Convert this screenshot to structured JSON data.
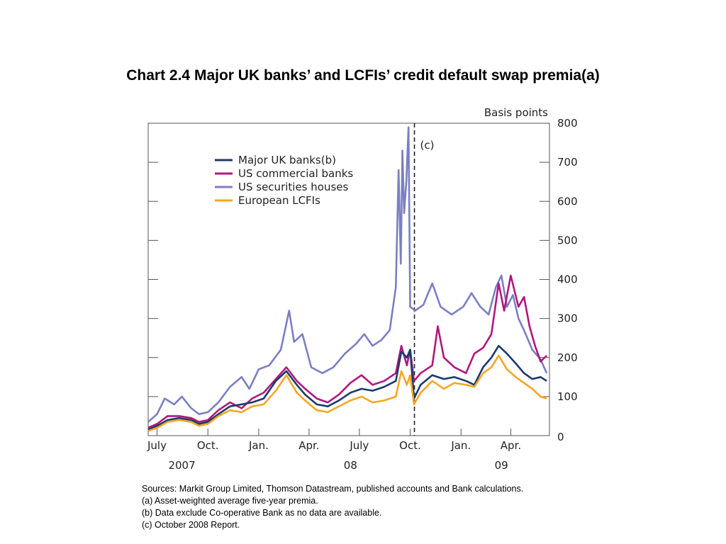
{
  "title": "Chart 2.4  Major UK banks’ and LCFIs’ credit default swap premia(a)",
  "notes": [
    "Sources:  Markit Group Limited, Thomson Datastream, published accounts and Bank calculations.",
    "(a) Asset-weighted average five-year premia.",
    "(b) Data exclude Co-operative Bank as no data are available.",
    "(c) October 2008 Report."
  ],
  "chart_data": {
    "type": "line",
    "title": "",
    "ylabel": "Basis points",
    "ylim": [
      0,
      800
    ],
    "yticks": [
      "800",
      "700",
      "600",
      "500",
      "400",
      "300",
      "200",
      "100",
      "0"
    ],
    "xlim": [
      "2007-06-15",
      "2009-06-10"
    ],
    "x_tick_labels": [
      {
        "label": "July",
        "date": "2007-07-01"
      },
      {
        "label": "Oct.",
        "date": "2007-10-01"
      },
      {
        "label": "Jan.",
        "date": "2008-01-01"
      },
      {
        "label": "Apr.",
        "date": "2008-04-01"
      },
      {
        "label": "July",
        "date": "2008-07-01"
      },
      {
        "label": "Oct.",
        "date": "2008-10-01"
      },
      {
        "label": "Jan.",
        "date": "2009-01-01"
      },
      {
        "label": "Apr.",
        "date": "2009-04-01"
      }
    ],
    "x_year_labels": [
      {
        "label": "2007",
        "date": "2007-08-15"
      },
      {
        "label": "08",
        "date": "2008-06-15"
      },
      {
        "label": "09",
        "date": "2009-03-15"
      }
    ],
    "annotation": {
      "label": "(c)",
      "date": "2008-10-01",
      "style": "dashed vertical line"
    },
    "legend_position": "top-left",
    "grid": false,
    "series": [
      {
        "name": "Major UK banks(b)",
        "color": "#1b3a6b",
        "points": [
          [
            "2007-06-15",
            15
          ],
          [
            "2007-07-01",
            25
          ],
          [
            "2007-07-20",
            40
          ],
          [
            "2007-08-10",
            45
          ],
          [
            "2007-09-01",
            40
          ],
          [
            "2007-09-15",
            30
          ],
          [
            "2007-10-01",
            35
          ],
          [
            "2007-10-20",
            55
          ],
          [
            "2007-11-10",
            75
          ],
          [
            "2007-12-01",
            80
          ],
          [
            "2007-12-20",
            85
          ],
          [
            "2008-01-10",
            95
          ],
          [
            "2008-02-01",
            140
          ],
          [
            "2008-02-20",
            165
          ],
          [
            "2008-03-10",
            130
          ],
          [
            "2008-03-25",
            105
          ],
          [
            "2008-04-15",
            80
          ],
          [
            "2008-05-05",
            75
          ],
          [
            "2008-05-25",
            90
          ],
          [
            "2008-06-15",
            110
          ],
          [
            "2008-07-05",
            120
          ],
          [
            "2008-07-25",
            115
          ],
          [
            "2008-08-15",
            125
          ],
          [
            "2008-09-05",
            140
          ],
          [
            "2008-09-15",
            215
          ],
          [
            "2008-09-25",
            200
          ],
          [
            "2008-10-01",
            220
          ],
          [
            "2008-10-08",
            95
          ],
          [
            "2008-10-20",
            130
          ],
          [
            "2008-11-10",
            155
          ],
          [
            "2008-12-01",
            145
          ],
          [
            "2008-12-20",
            150
          ],
          [
            "2009-01-10",
            140
          ],
          [
            "2009-01-25",
            130
          ],
          [
            "2009-02-10",
            175
          ],
          [
            "2009-02-25",
            200
          ],
          [
            "2009-03-10",
            230
          ],
          [
            "2009-03-25",
            210
          ],
          [
            "2009-04-10",
            185
          ],
          [
            "2009-04-25",
            160
          ],
          [
            "2009-05-10",
            145
          ],
          [
            "2009-05-25",
            150
          ],
          [
            "2009-06-05",
            140
          ]
        ]
      },
      {
        "name": "US commercial banks",
        "color": "#b0177e",
        "points": [
          [
            "2007-06-15",
            20
          ],
          [
            "2007-07-01",
            30
          ],
          [
            "2007-07-20",
            50
          ],
          [
            "2007-08-10",
            50
          ],
          [
            "2007-09-01",
            45
          ],
          [
            "2007-09-15",
            35
          ],
          [
            "2007-10-01",
            40
          ],
          [
            "2007-10-20",
            65
          ],
          [
            "2007-11-10",
            85
          ],
          [
            "2007-12-01",
            70
          ],
          [
            "2007-12-20",
            95
          ],
          [
            "2008-01-10",
            110
          ],
          [
            "2008-02-01",
            145
          ],
          [
            "2008-02-20",
            175
          ],
          [
            "2008-03-10",
            140
          ],
          [
            "2008-03-25",
            120
          ],
          [
            "2008-04-15",
            95
          ],
          [
            "2008-05-05",
            85
          ],
          [
            "2008-05-25",
            105
          ],
          [
            "2008-06-15",
            135
          ],
          [
            "2008-07-05",
            155
          ],
          [
            "2008-07-25",
            130
          ],
          [
            "2008-08-15",
            140
          ],
          [
            "2008-09-05",
            160
          ],
          [
            "2008-09-15",
            230
          ],
          [
            "2008-09-25",
            180
          ],
          [
            "2008-10-01",
            220
          ],
          [
            "2008-10-08",
            140
          ],
          [
            "2008-10-20",
            160
          ],
          [
            "2008-11-10",
            180
          ],
          [
            "2008-11-20",
            280
          ],
          [
            "2008-12-01",
            200
          ],
          [
            "2008-12-20",
            175
          ],
          [
            "2009-01-10",
            160
          ],
          [
            "2009-01-25",
            210
          ],
          [
            "2009-02-10",
            225
          ],
          [
            "2009-02-25",
            260
          ],
          [
            "2009-03-10",
            390
          ],
          [
            "2009-03-20",
            320
          ],
          [
            "2009-04-01",
            410
          ],
          [
            "2009-04-15",
            330
          ],
          [
            "2009-04-25",
            355
          ],
          [
            "2009-05-05",
            280
          ],
          [
            "2009-05-15",
            230
          ],
          [
            "2009-05-25",
            190
          ],
          [
            "2009-06-05",
            205
          ]
        ]
      },
      {
        "name": "US securities houses",
        "color": "#7b7fc1",
        "points": [
          [
            "2007-06-15",
            35
          ],
          [
            "2007-07-01",
            55
          ],
          [
            "2007-07-15",
            95
          ],
          [
            "2007-08-01",
            80
          ],
          [
            "2007-08-15",
            100
          ],
          [
            "2007-09-01",
            70
          ],
          [
            "2007-09-15",
            55
          ],
          [
            "2007-10-01",
            60
          ],
          [
            "2007-10-20",
            85
          ],
          [
            "2007-11-10",
            125
          ],
          [
            "2007-12-01",
            150
          ],
          [
            "2007-12-15",
            120
          ],
          [
            "2008-01-01",
            170
          ],
          [
            "2008-01-20",
            180
          ],
          [
            "2008-02-10",
            220
          ],
          [
            "2008-02-25",
            320
          ],
          [
            "2008-03-05",
            240
          ],
          [
            "2008-03-20",
            260
          ],
          [
            "2008-04-05",
            175
          ],
          [
            "2008-04-25",
            160
          ],
          [
            "2008-05-15",
            175
          ],
          [
            "2008-06-05",
            210
          ],
          [
            "2008-06-25",
            235
          ],
          [
            "2008-07-10",
            260
          ],
          [
            "2008-07-25",
            230
          ],
          [
            "2008-08-10",
            245
          ],
          [
            "2008-08-25",
            270
          ],
          [
            "2008-09-05",
            380
          ],
          [
            "2008-09-10",
            680
          ],
          [
            "2008-09-14",
            440
          ],
          [
            "2008-09-17",
            730
          ],
          [
            "2008-09-20",
            570
          ],
          [
            "2008-09-24",
            650
          ],
          [
            "2008-09-28",
            790
          ],
          [
            "2008-10-01",
            330
          ],
          [
            "2008-10-10",
            320
          ],
          [
            "2008-10-25",
            335
          ],
          [
            "2008-11-10",
            390
          ],
          [
            "2008-11-25",
            330
          ],
          [
            "2008-12-15",
            310
          ],
          [
            "2009-01-05",
            330
          ],
          [
            "2009-01-20",
            365
          ],
          [
            "2009-02-05",
            330
          ],
          [
            "2009-02-20",
            310
          ],
          [
            "2009-03-05",
            380
          ],
          [
            "2009-03-15",
            410
          ],
          [
            "2009-03-25",
            330
          ],
          [
            "2009-04-05",
            360
          ],
          [
            "2009-04-15",
            300
          ],
          [
            "2009-04-25",
            270
          ],
          [
            "2009-05-10",
            220
          ],
          [
            "2009-05-25",
            195
          ],
          [
            "2009-06-05",
            160
          ]
        ]
      },
      {
        "name": "European LCFIs",
        "color": "#f5a623",
        "points": [
          [
            "2007-06-15",
            12
          ],
          [
            "2007-07-01",
            20
          ],
          [
            "2007-07-20",
            35
          ],
          [
            "2007-08-10",
            40
          ],
          [
            "2007-09-01",
            35
          ],
          [
            "2007-09-15",
            25
          ],
          [
            "2007-10-01",
            30
          ],
          [
            "2007-10-20",
            50
          ],
          [
            "2007-11-10",
            65
          ],
          [
            "2007-12-01",
            60
          ],
          [
            "2007-12-20",
            75
          ],
          [
            "2008-01-10",
            80
          ],
          [
            "2008-02-01",
            115
          ],
          [
            "2008-02-20",
            155
          ],
          [
            "2008-03-10",
            110
          ],
          [
            "2008-03-25",
            90
          ],
          [
            "2008-04-15",
            65
          ],
          [
            "2008-05-05",
            60
          ],
          [
            "2008-05-25",
            75
          ],
          [
            "2008-06-15",
            90
          ],
          [
            "2008-07-05",
            100
          ],
          [
            "2008-07-25",
            85
          ],
          [
            "2008-08-15",
            90
          ],
          [
            "2008-09-05",
            100
          ],
          [
            "2008-09-15",
            165
          ],
          [
            "2008-09-25",
            130
          ],
          [
            "2008-10-01",
            155
          ],
          [
            "2008-10-08",
            80
          ],
          [
            "2008-10-20",
            110
          ],
          [
            "2008-11-10",
            140
          ],
          [
            "2008-12-01",
            120
          ],
          [
            "2008-12-20",
            135
          ],
          [
            "2009-01-10",
            130
          ],
          [
            "2009-01-25",
            125
          ],
          [
            "2009-02-10",
            160
          ],
          [
            "2009-02-25",
            175
          ],
          [
            "2009-03-10",
            205
          ],
          [
            "2009-03-25",
            170
          ],
          [
            "2009-04-10",
            150
          ],
          [
            "2009-04-25",
            135
          ],
          [
            "2009-05-10",
            120
          ],
          [
            "2009-05-25",
            100
          ],
          [
            "2009-06-05",
            95
          ]
        ]
      }
    ]
  }
}
